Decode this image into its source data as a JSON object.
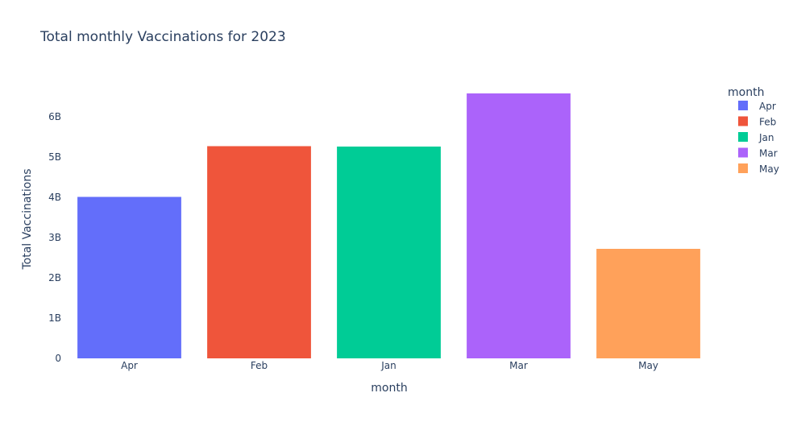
{
  "chart_data": {
    "type": "bar",
    "title": "Total monthly Vaccinations for 2023",
    "xlabel": "month",
    "ylabel": "Total Vaccinations",
    "categories": [
      "Apr",
      "Feb",
      "Jan",
      "Mar",
      "May"
    ],
    "series": [
      {
        "name": "Apr",
        "category": "Apr",
        "value": 4010000000,
        "color": "#636efa"
      },
      {
        "name": "Feb",
        "category": "Feb",
        "value": 5270000000,
        "color": "#ef553b"
      },
      {
        "name": "Jan",
        "category": "Jan",
        "value": 5260000000,
        "color": "#00cc96"
      },
      {
        "name": "Mar",
        "category": "Mar",
        "value": 6580000000,
        "color": "#ab63fa"
      },
      {
        "name": "May",
        "category": "May",
        "value": 2720000000,
        "color": "#ffa15a"
      }
    ],
    "ylim": [
      0,
      7000000000
    ],
    "y_ticks": [
      {
        "value": 0,
        "label": "0"
      },
      {
        "value": 1000000000,
        "label": "1B"
      },
      {
        "value": 2000000000,
        "label": "2B"
      },
      {
        "value": 3000000000,
        "label": "3B"
      },
      {
        "value": 4000000000,
        "label": "4B"
      },
      {
        "value": 5000000000,
        "label": "5B"
      },
      {
        "value": 6000000000,
        "label": "6B"
      }
    ],
    "legend": {
      "title": "month",
      "placement": "top-right"
    },
    "grid": false
  }
}
